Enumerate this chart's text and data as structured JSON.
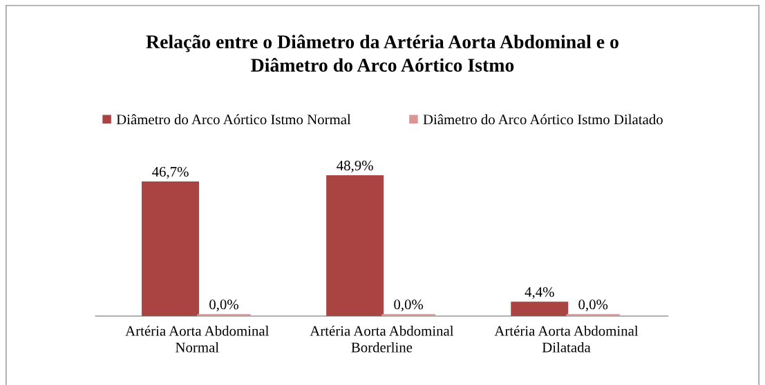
{
  "chart_data": {
    "type": "bar",
    "title": "Relação entre o Diâmetro da Artéria Aorta Abdominal e o\nDiâmetro do Arco Aórtico Istmo",
    "categories": [
      "Artéria Aorta Abdominal\nNormal",
      "Artéria Aorta Abdominal\nBorderline",
      "Artéria Aorta Abdominal\nDilatada"
    ],
    "series": [
      {
        "name": "Diâmetro do Arco Aórtico Istmo Normal",
        "color": "#a94442",
        "values": [
          46.7,
          48.9,
          4.4
        ],
        "value_labels": [
          "46,7%",
          "48,9%",
          "4,4%"
        ]
      },
      {
        "name": "Diâmetro do Arco Aórtico Istmo Dilatado",
        "color": "#d99694",
        "values": [
          0.0,
          0.0,
          0.0
        ],
        "value_labels": [
          "0,0%",
          "0,0%",
          "0,0%"
        ]
      }
    ],
    "legend": "top",
    "tick_labels": "x"
  }
}
